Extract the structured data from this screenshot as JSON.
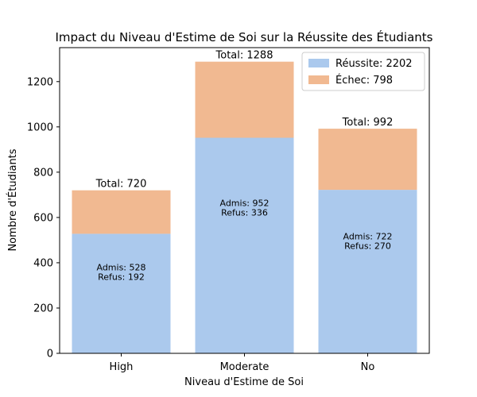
{
  "chart_data": {
    "type": "bar",
    "stacked": true,
    "title": "Impact du Niveau d'Estime de Soi sur la Réussite des Étudiants",
    "xlabel": "Niveau d'Estime de Soi",
    "ylabel": "Nombre d'Étudiants",
    "categories": [
      "High",
      "Moderate",
      "No"
    ],
    "ylim": [
      0,
      1350
    ],
    "yticks": [
      0,
      200,
      400,
      600,
      800,
      1000,
      1200
    ],
    "grid": false,
    "legend_position": "top-right",
    "series": [
      {
        "name": "Réussite: 2202",
        "values": [
          528,
          952,
          722
        ],
        "color": "#abc9ed"
      },
      {
        "name": "Échec: 798",
        "values": [
          192,
          336,
          270
        ],
        "color": "#f1b991"
      }
    ],
    "totals": [
      "Total: 720",
      "Total: 1288",
      "Total: 992"
    ],
    "bar_annotations": [
      [
        "Admis: 528",
        "Refus: 192"
      ],
      [
        "Admis: 952",
        "Refus: 336"
      ],
      [
        "Admis: 722",
        "Refus: 270"
      ]
    ]
  }
}
